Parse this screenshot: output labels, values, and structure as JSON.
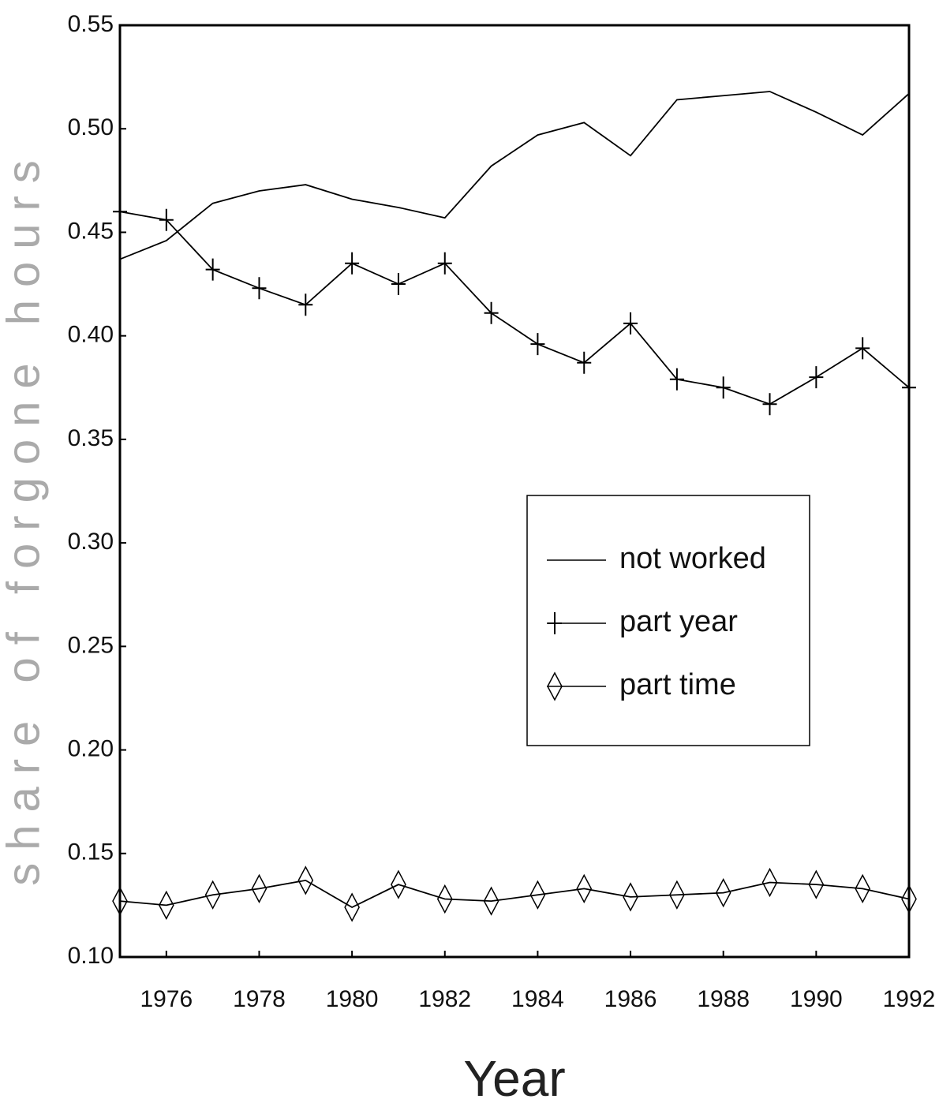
{
  "chart_data": {
    "type": "line",
    "xlabel": "Year",
    "ylabel": "share of forgone hours",
    "x": [
      1975,
      1976,
      1977,
      1978,
      1979,
      1980,
      1981,
      1982,
      1983,
      1984,
      1985,
      1986,
      1987,
      1988,
      1989,
      1990,
      1991,
      1992
    ],
    "series": [
      {
        "name": "not worked",
        "color": "#000000",
        "marker": "none",
        "values": [
          0.437,
          0.446,
          0.464,
          0.47,
          0.473,
          0.466,
          0.462,
          0.457,
          0.482,
          0.497,
          0.503,
          0.487,
          0.514,
          0.516,
          0.518,
          0.508,
          0.497,
          0.517
        ]
      },
      {
        "name": "part year",
        "color": "#000000",
        "marker": "plus",
        "values": [
          0.46,
          0.456,
          0.432,
          0.423,
          0.415,
          0.435,
          0.425,
          0.435,
          0.411,
          0.396,
          0.387,
          0.406,
          0.379,
          0.375,
          0.367,
          0.38,
          0.394,
          0.375
        ]
      },
      {
        "name": "part time",
        "color": "#000000",
        "marker": "diamond",
        "values": [
          0.127,
          0.125,
          0.13,
          0.133,
          0.137,
          0.124,
          0.135,
          0.128,
          0.127,
          0.13,
          0.133,
          0.129,
          0.13,
          0.131,
          0.136,
          0.135,
          0.133,
          0.128
        ]
      }
    ],
    "xlim": [
      1975,
      1992
    ],
    "xticks": [
      1976,
      1978,
      1980,
      1982,
      1984,
      1986,
      1988,
      1990,
      1992
    ],
    "ylim": [
      0.1,
      0.55
    ],
    "yticks": [
      {
        "value": 0.1,
        "label": "0.10"
      },
      {
        "value": 0.15,
        "label": "0.15"
      },
      {
        "value": 0.2,
        "label": "0.20"
      },
      {
        "value": 0.25,
        "label": "0.25"
      },
      {
        "value": 0.3,
        "label": "0.30"
      },
      {
        "value": 0.35,
        "label": "0.35"
      },
      {
        "value": 0.4,
        "label": "0.40"
      },
      {
        "value": 0.45,
        "label": "0.45"
      },
      {
        "value": 0.5,
        "label": "0.50"
      },
      {
        "value": 0.55,
        "label": "0.55"
      }
    ],
    "grid": false,
    "legend": "right"
  }
}
